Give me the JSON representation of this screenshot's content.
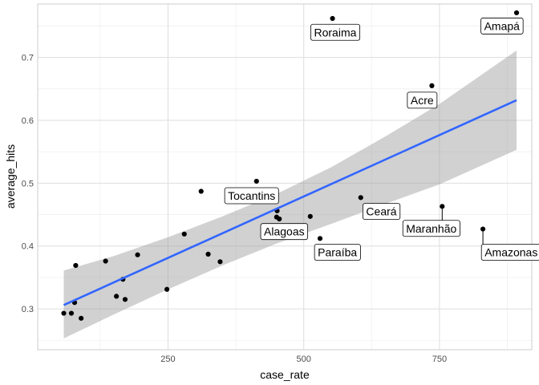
{
  "chart_data": {
    "type": "scatter",
    "title": "",
    "xlabel": "case_rate",
    "ylabel": "average_hits",
    "xlim": [
      10,
      920
    ],
    "ylim": [
      0.235,
      0.785
    ],
    "x_ticks": [
      250,
      500,
      750
    ],
    "x_tick_labels": [
      "250",
      "500",
      "750"
    ],
    "y_ticks": [
      0.3,
      0.4,
      0.5,
      0.6,
      0.7
    ],
    "y_tick_labels": [
      "0.3",
      "0.4",
      "0.5",
      "0.6",
      "0.7"
    ],
    "grid": true,
    "legend": "none",
    "point_color": "#000000",
    "trend_color": "#3366FF",
    "band_color": "#999999",
    "points": [
      {
        "x": 553,
        "y": 0.762,
        "label": "Roraima"
      },
      {
        "x": 892,
        "y": 0.771,
        "label": "Amapá"
      },
      {
        "x": 736,
        "y": 0.655,
        "label": "Acre"
      },
      {
        "x": 413,
        "y": 0.503,
        "label": "Tocantins"
      },
      {
        "x": 605,
        "y": 0.477,
        "label": "Ceará"
      },
      {
        "x": 755,
        "y": 0.463,
        "label": "Maranhão"
      },
      {
        "x": 455,
        "y": 0.443,
        "label": "Alagoas"
      },
      {
        "x": 530,
        "y": 0.412,
        "label": "Paraíba"
      },
      {
        "x": 830,
        "y": 0.427,
        "label": "Amazonas"
      },
      {
        "x": 311,
        "y": 0.487,
        "label": ""
      },
      {
        "x": 451,
        "y": 0.456,
        "label": ""
      },
      {
        "x": 450,
        "y": 0.446,
        "label": ""
      },
      {
        "x": 512,
        "y": 0.447,
        "label": ""
      },
      {
        "x": 280,
        "y": 0.419,
        "label": ""
      },
      {
        "x": 194,
        "y": 0.386,
        "label": ""
      },
      {
        "x": 324,
        "y": 0.387,
        "label": ""
      },
      {
        "x": 135,
        "y": 0.376,
        "label": ""
      },
      {
        "x": 346,
        "y": 0.375,
        "label": ""
      },
      {
        "x": 80,
        "y": 0.369,
        "label": ""
      },
      {
        "x": 167,
        "y": 0.347,
        "label": ""
      },
      {
        "x": 248,
        "y": 0.331,
        "label": ""
      },
      {
        "x": 155,
        "y": 0.32,
        "label": ""
      },
      {
        "x": 171,
        "y": 0.315,
        "label": ""
      },
      {
        "x": 78,
        "y": 0.31,
        "label": ""
      },
      {
        "x": 58,
        "y": 0.293,
        "label": ""
      },
      {
        "x": 72,
        "y": 0.293,
        "label": ""
      },
      {
        "x": 90,
        "y": 0.285,
        "label": ""
      }
    ],
    "trend_line": {
      "points": [
        {
          "x": 58,
          "y": 0.306
        },
        {
          "x": 892,
          "y": 0.632
        }
      ]
    },
    "confidence_band": {
      "upper": [
        {
          "x": 58,
          "y": 0.361
        },
        {
          "x": 150,
          "y": 0.384
        },
        {
          "x": 250,
          "y": 0.414
        },
        {
          "x": 350,
          "y": 0.447
        },
        {
          "x": 450,
          "y": 0.483
        },
        {
          "x": 550,
          "y": 0.525
        },
        {
          "x": 650,
          "y": 0.574
        },
        {
          "x": 750,
          "y": 0.626
        },
        {
          "x": 892,
          "y": 0.711
        }
      ],
      "lower": [
        {
          "x": 58,
          "y": 0.253
        },
        {
          "x": 150,
          "y": 0.291
        },
        {
          "x": 250,
          "y": 0.331
        },
        {
          "x": 350,
          "y": 0.369
        },
        {
          "x": 450,
          "y": 0.404
        },
        {
          "x": 550,
          "y": 0.435
        },
        {
          "x": 650,
          "y": 0.467
        },
        {
          "x": 750,
          "y": 0.498
        },
        {
          "x": 892,
          "y": 0.553
        }
      ]
    },
    "annotations": [
      {
        "label": "Roraima",
        "x": 553,
        "y": 0.762,
        "lx": 558,
        "ly": 0.74,
        "leader": false
      },
      {
        "label": "Amapá",
        "x": 892,
        "y": 0.771,
        "lx": 865,
        "ly": 0.75,
        "leader": false
      },
      {
        "label": "Acre",
        "x": 736,
        "y": 0.655,
        "lx": 718,
        "ly": 0.632,
        "leader": false
      },
      {
        "label": "Tocantins",
        "x": 413,
        "y": 0.503,
        "lx": 404,
        "ly": 0.48,
        "leader": false
      },
      {
        "label": "Ceará",
        "x": 605,
        "y": 0.477,
        "lx": 643,
        "ly": 0.455,
        "leader": false
      },
      {
        "label": "Maranhão",
        "x": 755,
        "y": 0.463,
        "lx": 735,
        "ly": 0.428,
        "leader": true
      },
      {
        "label": "Alagoas",
        "x": 455,
        "y": 0.443,
        "lx": 464,
        "ly": 0.423,
        "leader": false
      },
      {
        "label": "Paraíba",
        "x": 530,
        "y": 0.412,
        "lx": 562,
        "ly": 0.39,
        "leader": false
      },
      {
        "label": "Amazonas",
        "x": 830,
        "y": 0.427,
        "lx": 882,
        "ly": 0.39,
        "leader": true
      }
    ]
  }
}
